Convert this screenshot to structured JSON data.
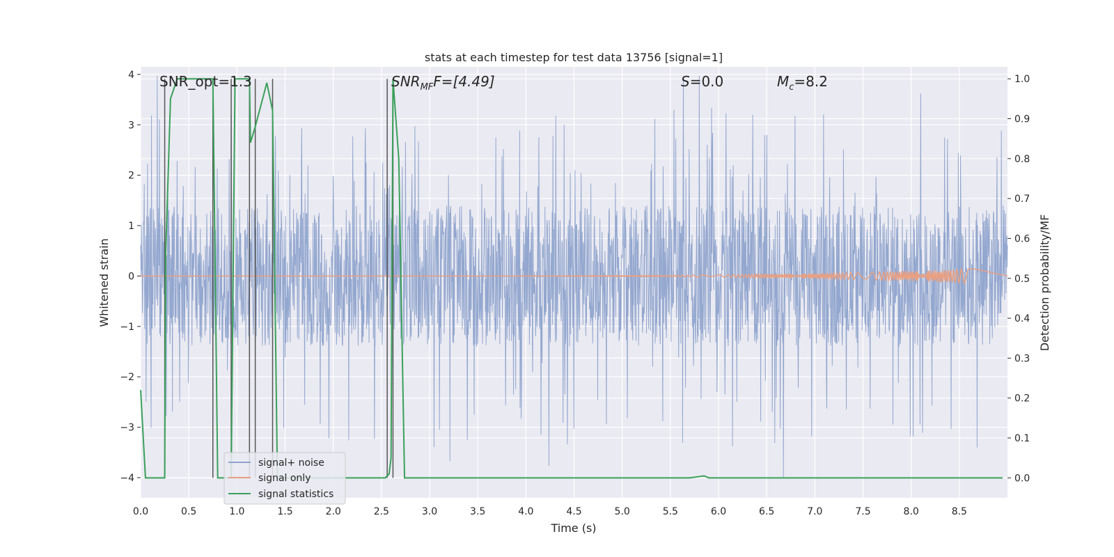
{
  "chart_data": {
    "type": "line",
    "title": "stats at each timestep for test data 13756 [signal=1]",
    "xlabel": "Time (s)",
    "ylabel_left": "Whitened strain",
    "ylabel_right": "Detection probability/MF",
    "xlim": [
      0.0,
      9.0
    ],
    "ylim_left": [
      -4.4,
      4.15
    ],
    "ylim_right": [
      -0.05,
      1.03
    ],
    "xticks": [
      "0.0",
      "0.5",
      "1.0",
      "1.5",
      "2.0",
      "2.5",
      "3.0",
      "3.5",
      "4.0",
      "4.5",
      "5.0",
      "5.5",
      "6.0",
      "6.5",
      "7.0",
      "7.5",
      "8.0",
      "8.5"
    ],
    "yticks_left": [
      "4",
      "3",
      "2",
      "1",
      "0",
      "−1",
      "−2",
      "−3",
      "−4"
    ],
    "yticks_right": [
      "1.0",
      "0.9",
      "0.8",
      "0.7",
      "0.6",
      "0.5",
      "0.4",
      "0.3",
      "0.2",
      "0.1",
      "0.0"
    ],
    "grid": true,
    "legend_position": "lower-left",
    "annotations": {
      "snr_opt": "SNR_opt=1.3",
      "snr_mf_sym": "SNR",
      "snr_mf_sub": "MF",
      "snr_mf_val": "F=[4.49]",
      "s_sym": "S",
      "s_val": "=0.0",
      "mc_sym": "M",
      "mc_sub": "c",
      "mc_val": "=8.2"
    },
    "series": [
      {
        "name": "signal+ noise",
        "color": "#8ea3cc",
        "description_values": "whitened strain noise, roughly within ±2 with peaks to about ±4",
        "envelope": {
          "core": 1.4,
          "peak_max": 4.0
        }
      },
      {
        "name": "signal only",
        "color": "#e8a083",
        "chirp": {
          "start_s": 0.0,
          "end_s": 8.65,
          "max_amp": 0.15
        }
      },
      {
        "name": "signal statistics",
        "color": "#3aa05a",
        "x": [
          0.0,
          0.05,
          0.25,
          0.26,
          0.31,
          0.38,
          0.74,
          0.75,
          0.8,
          0.94,
          0.98,
          1.13,
          1.14,
          1.19,
          1.31,
          1.37,
          1.42,
          2.54,
          2.58,
          2.6,
          2.62,
          2.68,
          2.74,
          5.7,
          5.85,
          5.9,
          8.95
        ],
        "y": [
          0.22,
          0.0,
          0.0,
          0.56,
          0.95,
          1.0,
          1.0,
          1.0,
          0.0,
          0.0,
          1.0,
          1.0,
          0.84,
          0.88,
          0.99,
          0.92,
          0.0,
          0.0,
          0.01,
          0.05,
          1.0,
          0.8,
          0.0,
          0.0,
          0.005,
          0.0,
          0.0
        ]
      },
      {
        "name": "vlines",
        "color": "#555555",
        "x": [
          0.25,
          0.75,
          0.94,
          1.13,
          1.19,
          1.37,
          2.56,
          2.62
        ]
      }
    ]
  },
  "legend": {
    "items": [
      {
        "label": "signal+ noise",
        "color": "#8ea3cc"
      },
      {
        "label": "signal only",
        "color": "#e8a083"
      },
      {
        "label": "signal statistics",
        "color": "#3aa05a"
      }
    ]
  }
}
